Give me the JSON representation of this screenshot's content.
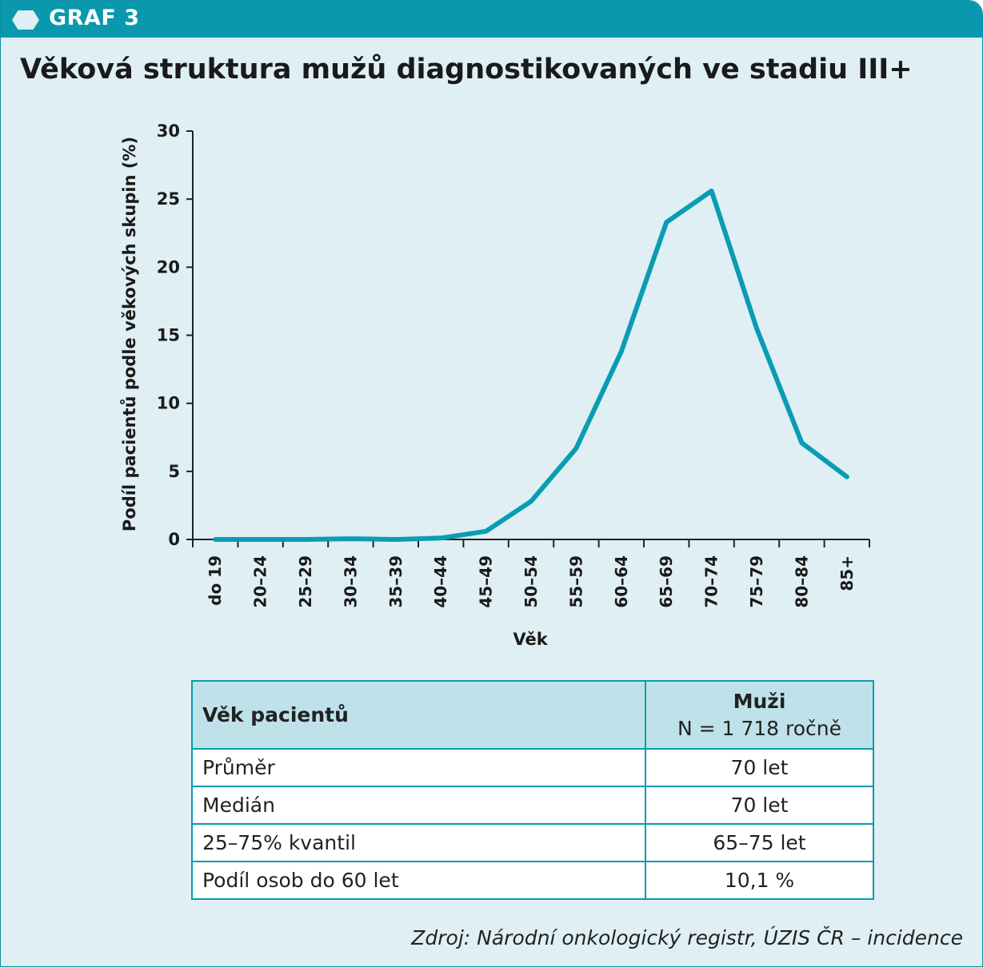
{
  "header": {
    "label": "GRAF 3"
  },
  "chart_data": {
    "type": "line",
    "title": "Věková struktura mužů diagnostikovaných ve stadiu III+",
    "xlabel": "Věk",
    "ylabel": "Podíl pacientů podle věkových skupin (%)",
    "ylim": [
      0,
      30
    ],
    "yticks": [
      "0",
      "5",
      "10",
      "15",
      "20",
      "25",
      "30"
    ],
    "categories": [
      "do 19",
      "20–24",
      "25–29",
      "30–34",
      "35–39",
      "40–44",
      "45–49",
      "50–54",
      "55–59",
      "60–64",
      "65–69",
      "70–74",
      "75–79",
      "80–84",
      "85+"
    ],
    "series": [
      {
        "values": [
          0.0,
          0.0,
          0.0,
          0.05,
          0.0,
          0.1,
          0.6,
          2.8,
          6.7,
          13.8,
          23.3,
          25.6,
          15.5,
          7.1,
          4.6
        ],
        "color": "#0a9cb2"
      }
    ],
    "grid": false
  },
  "table": {
    "col1_header": "Věk pacientů",
    "col2_header": "Muži",
    "col2_sub": "N = 1 718 ročně",
    "rows": [
      {
        "label": "Průměr",
        "value": "70 let"
      },
      {
        "label": "Medián",
        "value": "70 let"
      },
      {
        "label": "25–75% kvantil",
        "value": "65–75 let"
      },
      {
        "label": "Podíl osob do 60 let",
        "value": "10,1 %"
      }
    ]
  },
  "source": "Zdroj: Národní onkologický registr, ÚZIS ČR – incidence"
}
